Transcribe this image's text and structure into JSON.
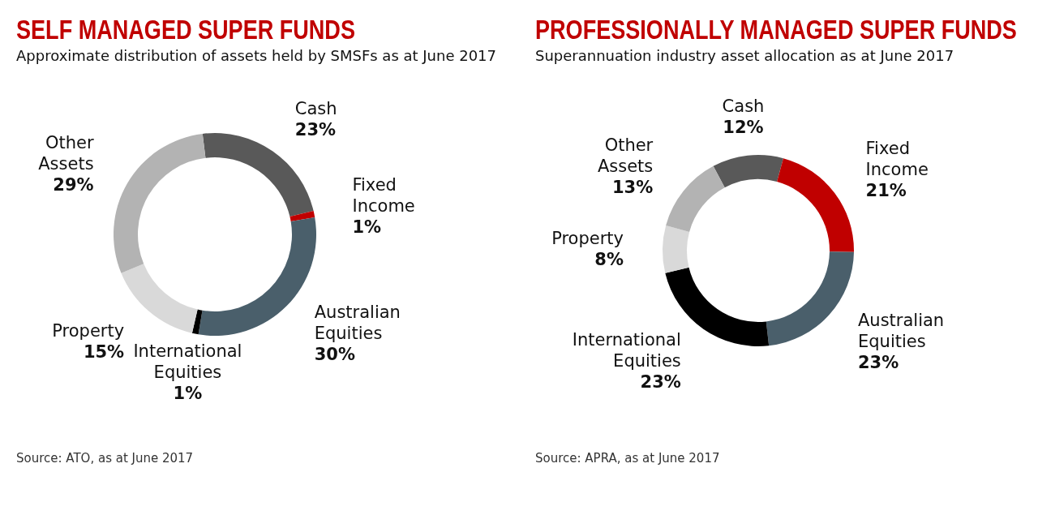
{
  "chart_data": [
    {
      "type": "donut",
      "title": "SELF MANAGED SUPER FUNDS",
      "subtitle": "Approximate distribution of assets held by SMSFs as at June 2017",
      "categories": [
        "Cash",
        "Fixed Income",
        "Australian Equities",
        "International Equities",
        "Property",
        "Other Assets"
      ],
      "values": [
        23,
        1,
        30,
        1,
        15,
        29
      ],
      "value_labels": [
        "23%",
        "1%",
        "30%",
        "1%",
        "15%",
        "29%"
      ],
      "colors": [
        "#595959",
        "#c00000",
        "#4a5f6b",
        "#000000",
        "#d9d9d9",
        "#b3b3b3"
      ],
      "annotations": [
        "Source: ATO, as at June 2017"
      ]
    },
    {
      "type": "donut",
      "title": "PROFESSIONALLY MANAGED SUPER FUNDS",
      "subtitle": "Superannuation industry asset allocation as at June 2017",
      "categories": [
        "Cash",
        "Fixed Income",
        "Australian Equities",
        "International Equities",
        "Property",
        "Other Assets"
      ],
      "values": [
        12,
        21,
        23,
        23,
        8,
        13
      ],
      "value_labels": [
        "12%",
        "21%",
        "23%",
        "23%",
        "8%",
        "13%"
      ],
      "colors": [
        "#595959",
        "#c00000",
        "#4a5f6b",
        "#000000",
        "#d9d9d9",
        "#b3b3b3"
      ],
      "annotations": [
        "Source: APRA, as at June 2017"
      ]
    }
  ]
}
